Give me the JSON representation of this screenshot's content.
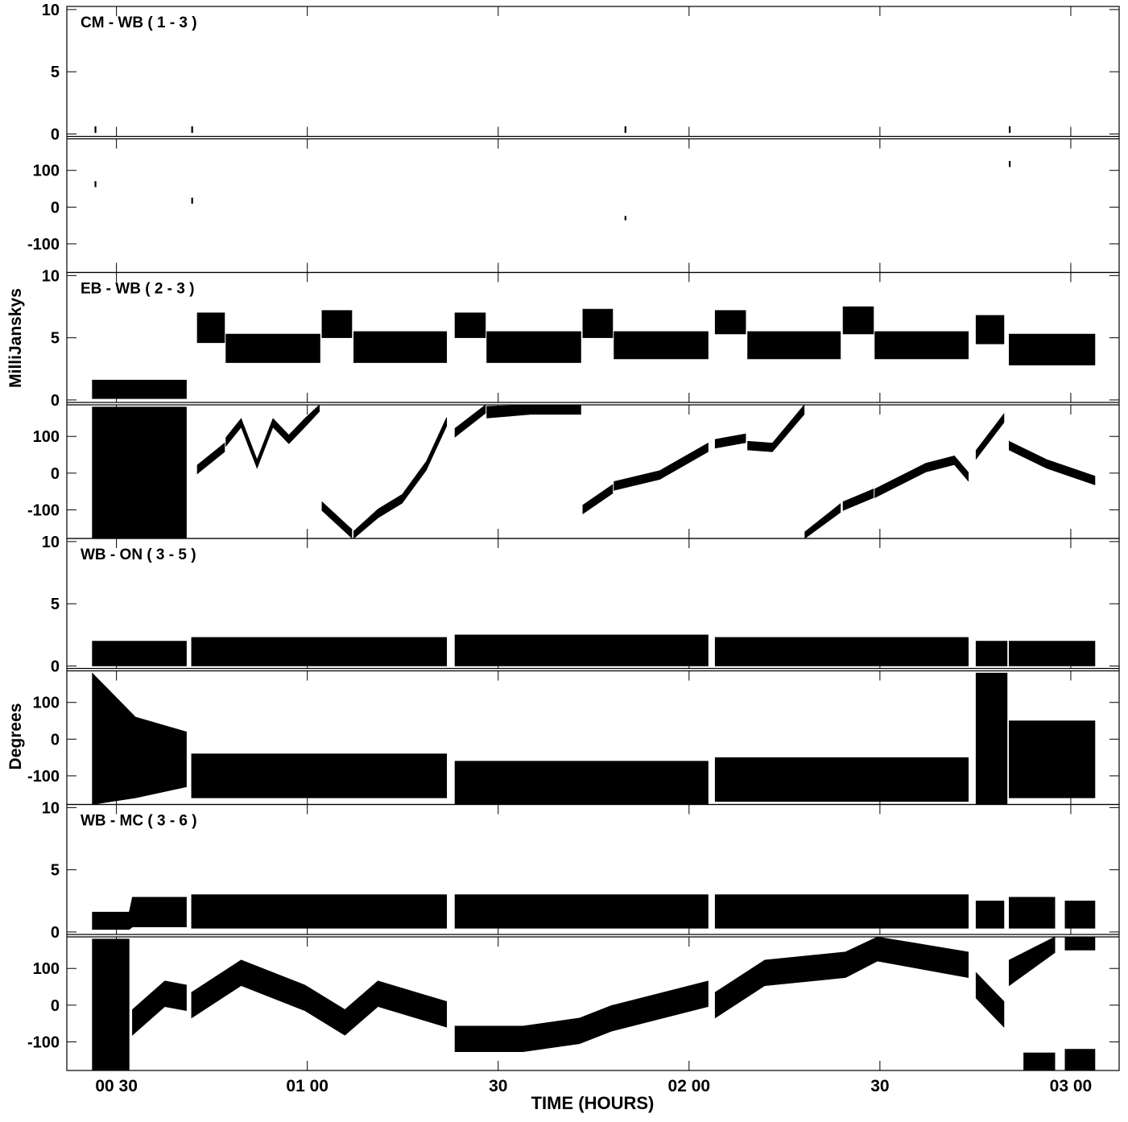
{
  "chart_data": {
    "type": "band",
    "y_label_amplitude": "MilliJanskys",
    "y_label_phase": "Degrees",
    "x_label": "TIME (HOURS)",
    "xlim": [
      22.2,
      187.6
    ],
    "xticks": [
      {
        "value": 30,
        "label": "00 30"
      },
      {
        "value": 60,
        "label": "01 00"
      },
      {
        "value": 90,
        "label": "30"
      },
      {
        "value": 120,
        "label": "02 00"
      },
      {
        "value": 150,
        "label": "30"
      },
      {
        "value": 180,
        "label": "03 00"
      }
    ],
    "amplitude_ylim": [
      -0.2,
      10.25
    ],
    "amplitude_yticks": [
      0,
      5,
      10
    ],
    "phase_ylim": [
      -178,
      186
    ],
    "phase_yticks": [
      -100,
      0,
      100
    ],
    "color": "#000000",
    "panels": [
      {
        "label": "CM - WB ( 1 - 3 )",
        "amplitude": {
          "x": [
            26.7,
            null,
            41.9,
            null,
            110.0,
            null,
            170.4
          ],
          "low": [
            0.1,
            null,
            0.1,
            null,
            0.1,
            null,
            0.1
          ],
          "high": [
            0.6,
            null,
            0.6,
            null,
            0.6,
            null,
            0.6
          ]
        },
        "phase": {
          "x": [
            26.7,
            null,
            41.9,
            null,
            110.0,
            null,
            170.4
          ],
          "low": [
            55,
            null,
            10,
            null,
            -35,
            null,
            110
          ],
          "high": [
            70,
            null,
            25,
            null,
            -25,
            null,
            125
          ]
        }
      },
      {
        "label": "EB - WB ( 2 - 3 )",
        "amplitude": {
          "x": [
            26.2,
            41.0,
            null,
            42.7,
            47.0,
            null,
            47.2,
            62.0,
            null,
            62.3,
            67.0,
            null,
            67.3,
            81.9,
            null,
            83.2,
            88.0,
            null,
            88.2,
            103.0,
            null,
            103.3,
            108.0,
            null,
            108.2,
            123.0,
            null,
            124.1,
            128.9,
            null,
            129.2,
            143.8,
            null,
            144.2,
            149.0,
            null,
            149.2,
            163.9,
            null,
            165.1,
            169.5,
            null,
            170.3,
            183.8
          ],
          "low": [
            0.1,
            0.1,
            null,
            4.6,
            4.6,
            null,
            3,
            3,
            null,
            5,
            5,
            null,
            3,
            3,
            null,
            5,
            5,
            null,
            3,
            3,
            null,
            5,
            5,
            null,
            3.3,
            3.3,
            null,
            5.3,
            5.3,
            null,
            3.3,
            3.3,
            null,
            5.3,
            5.3,
            null,
            3.3,
            3.3,
            null,
            4.5,
            4.5,
            null,
            2.8,
            2.8
          ],
          "high": [
            1.6,
            1.6,
            null,
            7,
            7,
            null,
            5.3,
            5.3,
            null,
            7.2,
            7.2,
            null,
            5.5,
            5.5,
            null,
            7,
            7,
            null,
            5.5,
            5.5,
            null,
            7.3,
            7.3,
            null,
            5.5,
            5.5,
            null,
            7.2,
            7.2,
            null,
            5.5,
            5.5,
            null,
            7.5,
            7.5,
            null,
            5.5,
            5.5,
            null,
            6.8,
            6.8,
            null,
            5.3,
            5.3
          ]
        },
        "phase": {
          "x": [
            26.2,
            41.0,
            null,
            42.7,
            47.0,
            null,
            47.2,
            49.6,
            52.1,
            54.6,
            57.1,
            59.6,
            61.9,
            null,
            62.3,
            67.0,
            null,
            67.3,
            71.1,
            74.9,
            78.7,
            81.9,
            null,
            83.2,
            88.0,
            null,
            88.2,
            95.1,
            103.0,
            null,
            103.3,
            108.0,
            null,
            108.2,
            115.4,
            123.0,
            null,
            124.1,
            128.9,
            null,
            129.2,
            133.1,
            138.1,
            null,
            138.2,
            143.8,
            null,
            144.2,
            149.0,
            null,
            149.2,
            157.2,
            161.7,
            163.9,
            null,
            165.1,
            169.5,
            null,
            170.3,
            176.2,
            183.8
          ],
          "low": [
            -178,
            -178,
            null,
            -2,
            58,
            null,
            73,
            125,
            13,
            125,
            80,
            125,
            168,
            null,
            -102,
            -177,
            null,
            -178,
            -122,
            -82,
            8,
            128,
            null,
            98,
            163,
            null,
            150,
            160,
            160,
            null,
            -111,
            -55,
            null,
            -47,
            -17,
            58,
            null,
            68,
            83,
            null,
            63,
            58,
            160,
            null,
            -178,
            -107,
            null,
            -102,
            -67,
            null,
            -67,
            3,
            23,
            -22,
            null,
            38,
            138,
            null,
            63,
            13,
            -32
          ],
          "high": [
            180,
            180,
            null,
            22,
            82,
            null,
            97,
            149,
            37,
            149,
            104,
            149,
            186,
            null,
            -78,
            -153,
            null,
            -158,
            -98,
            -58,
            32,
            152,
            null,
            122,
            186,
            null,
            182,
            186,
            186,
            null,
            -87,
            -31,
            null,
            -23,
            7,
            82,
            null,
            92,
            107,
            null,
            87,
            82,
            186,
            null,
            -160,
            -83,
            null,
            -78,
            -43,
            null,
            -43,
            27,
            47,
            2,
            null,
            62,
            162,
            null,
            87,
            37,
            -8
          ]
        }
      },
      {
        "label": "WB - ON ( 3 - 5 )",
        "amplitude": {
          "x": [
            26.2,
            41.0,
            null,
            41.8,
            81.9,
            null,
            83.2,
            123.0,
            null,
            124.1,
            163.9,
            null,
            165.1,
            170.0,
            null,
            170.3,
            183.8
          ],
          "low": [
            0,
            0,
            null,
            0,
            0,
            null,
            0,
            0,
            null,
            0,
            0,
            null,
            0,
            0,
            null,
            0,
            0
          ],
          "high": [
            2,
            2,
            null,
            2.3,
            2.3,
            null,
            2.5,
            2.5,
            null,
            2.3,
            2.3,
            null,
            2,
            2,
            null,
            2,
            2
          ]
        },
        "phase": {
          "x": [
            26.2,
            33.0,
            41.0,
            null,
            41.8,
            81.9,
            null,
            83.2,
            123.0,
            null,
            124.1,
            163.9,
            null,
            165.1,
            170.0,
            null,
            170.3,
            183.8
          ],
          "low": [
            -178,
            -160,
            -130,
            null,
            -160,
            -160,
            null,
            -178,
            -178,
            null,
            -170,
            -170,
            null,
            -178,
            -178,
            null,
            -160,
            -160
          ],
          "high": [
            180,
            60,
            20,
            null,
            -40,
            -40,
            null,
            -60,
            -60,
            null,
            -50,
            -50,
            null,
            180,
            180,
            null,
            50,
            50
          ]
        }
      },
      {
        "label": "WB - MC ( 3 - 6 )",
        "amplitude": {
          "x": [
            26.2,
            32.0,
            32.5,
            41.0,
            null,
            41.8,
            81.9,
            null,
            83.2,
            123.0,
            null,
            124.1,
            163.9,
            null,
            165.1,
            169.5,
            null,
            170.3,
            177.5,
            null,
            179.1,
            183.8
          ],
          "low": [
            0.2,
            0.2,
            0.4,
            0.4,
            null,
            0.3,
            0.3,
            null,
            0.3,
            0.3,
            null,
            0.3,
            0.3,
            null,
            0.3,
            0.3,
            null,
            0.3,
            0.3,
            null,
            0.3,
            0.3
          ],
          "high": [
            1.6,
            1.6,
            2.8,
            2.8,
            null,
            3,
            3,
            null,
            3,
            3,
            null,
            3,
            3,
            null,
            2.5,
            2.5,
            null,
            2.8,
            2.8,
            null,
            2.5,
            2.5
          ]
        },
        "phase": {
          "x": [
            26.2,
            32.0,
            null,
            32.5,
            37.6,
            41.0,
            null,
            41.8,
            49.6,
            59.6,
            65.9,
            71.1,
            81.9,
            null,
            83.2,
            93.9,
            102.8,
            107.8,
            123.0,
            null,
            124.1,
            131.9,
            144.6,
            149.6,
            163.9,
            null,
            165.1,
            169.5,
            null,
            170.3,
            177.5,
            null,
            172.6,
            177.5,
            null,
            179.1,
            183.8,
            null,
            179.1,
            183.8
          ],
          "low": [
            -178,
            -178,
            null,
            -82,
            -4,
            -15,
            null,
            -35,
            53,
            -15,
            -82,
            -4,
            -60,
            null,
            -127,
            -127,
            -105,
            -71,
            -4,
            null,
            -35,
            53,
            75,
            120,
            75,
            null,
            19,
            -60,
            null,
            53,
            143,
            null,
            -178,
            -178,
            null,
            150,
            150,
            null,
            -178,
            -178
          ],
          "high": [
            180,
            180,
            null,
            -12,
            66,
            55,
            null,
            35,
            123,
            55,
            -12,
            66,
            10,
            null,
            -57,
            -57,
            -35,
            -1,
            66,
            null,
            35,
            123,
            145,
            186,
            145,
            null,
            89,
            10,
            null,
            123,
            186,
            null,
            -130,
            -130,
            null,
            186,
            186,
            null,
            -120,
            -120
          ]
        }
      }
    ]
  }
}
